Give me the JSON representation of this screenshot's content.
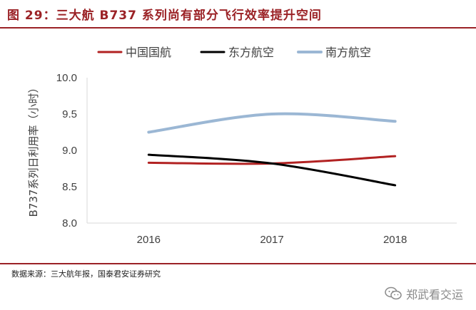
{
  "header": {
    "title": "图 29：三大航 B737 系列尚有部分飞行效率提升空间"
  },
  "source": {
    "text": "数据来源：三大航年报，国泰君安证券研究"
  },
  "watermark": {
    "text": "郑武看交运",
    "icon": "wechat-icon"
  },
  "colors": {
    "title": "#9b2226",
    "series": [
      "#b22222",
      "#000000",
      "#9bb7d4"
    ],
    "axis": "#d9d9d9",
    "text": "#404040"
  },
  "chart_data": {
    "type": "line",
    "title": "",
    "xlabel": "",
    "ylabel": "B737系列日利用率（小时）",
    "categories": [
      "2016",
      "2017",
      "2018"
    ],
    "series": [
      {
        "name": "中国国航",
        "values": [
          8.83,
          8.82,
          8.92
        ]
      },
      {
        "name": "东方航空",
        "values": [
          8.94,
          8.82,
          8.52
        ]
      },
      {
        "name": "南方航空",
        "values": [
          9.25,
          9.5,
          9.4
        ]
      }
    ],
    "ylim": [
      8.0,
      10.0
    ],
    "yticks": [
      "8.0",
      "8.5",
      "9.0",
      "9.5",
      "10.0"
    ],
    "grid": false,
    "legend": "top"
  }
}
